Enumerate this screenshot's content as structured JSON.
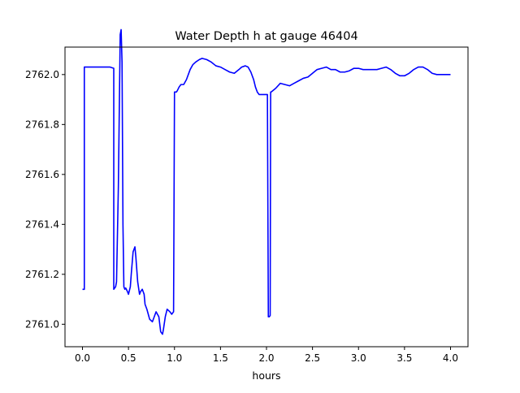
{
  "chart_data": {
    "type": "line",
    "title": "Water Depth h at gauge 46404",
    "xlabel": "hours",
    "ylabel": "",
    "xlim": [
      -0.19,
      4.19
    ],
    "ylim": [
      2760.91,
      2762.11
    ],
    "x_ticks": [
      0.0,
      0.5,
      1.0,
      1.5,
      2.0,
      2.5,
      3.0,
      3.5,
      4.0
    ],
    "x_tick_labels": [
      "0.0",
      "0.5",
      "1.0",
      "1.5",
      "2.0",
      "2.5",
      "3.0",
      "3.5",
      "4.0"
    ],
    "y_ticks": [
      2761.0,
      2761.2,
      2761.4,
      2761.6,
      2761.8,
      2762.0
    ],
    "y_tick_labels": [
      "2761.0",
      "2761.2",
      "2761.4",
      "2761.6",
      "2761.8",
      "2762.0"
    ],
    "grid": false,
    "series": [
      {
        "color": "#0000ff",
        "x": [
          0.0,
          0.02,
          0.02,
          0.03,
          0.1,
          0.2,
          0.3,
          0.34,
          0.34,
          0.36,
          0.37,
          0.39,
          0.41,
          0.42,
          0.43,
          0.44,
          0.45,
          0.46,
          0.47,
          0.49,
          0.5,
          0.52,
          0.53,
          0.55,
          0.57,
          0.58,
          0.6,
          0.62,
          0.63,
          0.65,
          0.67,
          0.68,
          0.7,
          0.73,
          0.76,
          0.78,
          0.8,
          0.83,
          0.85,
          0.87,
          0.88,
          0.9,
          0.92,
          0.95,
          0.97,
          0.99,
          1.0,
          1.01,
          1.02,
          1.03,
          1.05,
          1.07,
          1.1,
          1.13,
          1.17,
          1.2,
          1.23,
          1.27,
          1.3,
          1.35,
          1.4,
          1.45,
          1.5,
          1.55,
          1.6,
          1.65,
          1.7,
          1.73,
          1.77,
          1.8,
          1.83,
          1.86,
          1.88,
          1.9,
          1.92,
          1.95,
          1.98,
          2.01,
          2.02,
          2.025,
          2.03,
          2.04,
          2.045,
          2.05,
          2.1,
          2.15,
          2.2,
          2.25,
          2.3,
          2.35,
          2.4,
          2.45,
          2.5,
          2.55,
          2.6,
          2.65,
          2.7,
          2.75,
          2.8,
          2.85,
          2.9,
          2.95,
          3.0,
          3.05,
          3.1,
          3.15,
          3.2,
          3.25,
          3.3,
          3.35,
          3.4,
          3.45,
          3.5,
          3.55,
          3.6,
          3.65,
          3.7,
          3.75,
          3.8,
          3.85,
          3.9,
          3.95,
          4.0
        ],
        "y": [
          2761.14,
          2761.14,
          2762.03,
          2762.03,
          2762.03,
          2762.03,
          2762.03,
          2762.025,
          2761.14,
          2761.15,
          2761.17,
          2761.55,
          2762.16,
          2762.18,
          2762.05,
          2761.4,
          2761.15,
          2761.14,
          2761.145,
          2761.13,
          2761.12,
          2761.15,
          2761.2,
          2761.29,
          2761.31,
          2761.27,
          2761.17,
          2761.12,
          2761.13,
          2761.14,
          2761.12,
          2761.08,
          2761.06,
          2761.02,
          2761.01,
          2761.03,
          2761.05,
          2761.03,
          2760.97,
          2760.96,
          2760.98,
          2761.03,
          2761.06,
          2761.05,
          2761.04,
          2761.05,
          2761.93,
          2761.93,
          2761.93,
          2761.935,
          2761.95,
          2761.96,
          2761.96,
          2761.98,
          2762.02,
          2762.04,
          2762.05,
          2762.06,
          2762.065,
          2762.06,
          2762.05,
          2762.035,
          2762.03,
          2762.02,
          2762.01,
          2762.005,
          2762.02,
          2762.03,
          2762.035,
          2762.03,
          2762.01,
          2761.98,
          2761.95,
          2761.93,
          2761.92,
          2761.92,
          2761.92,
          2761.92,
          2761.03,
          2761.03,
          2761.03,
          2761.035,
          2761.93,
          2761.93,
          2761.945,
          2761.965,
          2761.96,
          2761.955,
          2761.965,
          2761.975,
          2761.985,
          2761.99,
          2762.005,
          2762.02,
          2762.025,
          2762.03,
          2762.02,
          2762.02,
          2762.01,
          2762.01,
          2762.015,
          2762.025,
          2762.025,
          2762.02,
          2762.02,
          2762.02,
          2762.02,
          2762.025,
          2762.03,
          2762.02,
          2762.005,
          2761.995,
          2761.995,
          2762.005,
          2762.02,
          2762.03,
          2762.03,
          2762.02,
          2762.005,
          2762.0,
          2762.0,
          2762.0,
          2762.0
        ]
      }
    ]
  }
}
